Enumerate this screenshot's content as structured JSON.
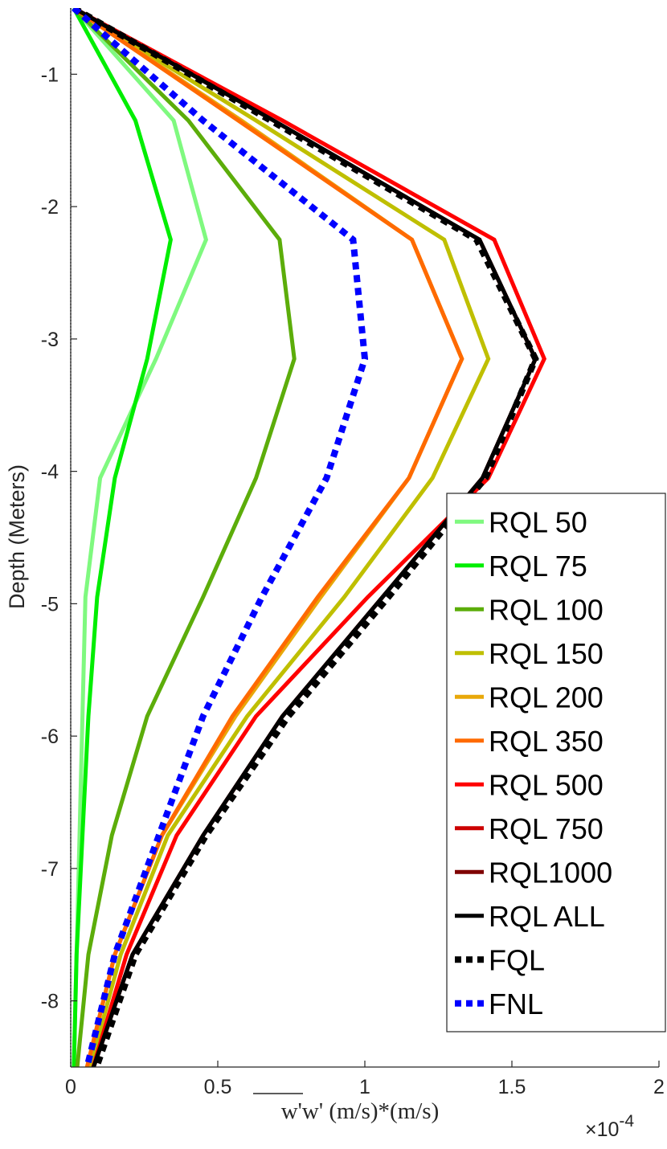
{
  "chart_data": {
    "type": "line",
    "title": "",
    "xlabel": "w'w' (m/s)*(m/s)",
    "ylabel": "Depth (Meters)",
    "x_multiplier": "×10^-4",
    "x_multiplier_base": "×10",
    "x_multiplier_exp": "-4",
    "xlim": [
      0,
      2
    ],
    "ylim": [
      -8.5,
      -0.5
    ],
    "xticks": [
      0,
      0.5,
      1,
      1.5,
      2
    ],
    "xtick_labels": [
      "0",
      "0.5",
      "1",
      "1.5",
      "2"
    ],
    "yticks": [
      -1,
      -2,
      -3,
      -4,
      -5,
      -6,
      -7,
      -8
    ],
    "ytick_labels": [
      "-1",
      "-2",
      "-3",
      "-4",
      "-5",
      "-6",
      "-7",
      "-8"
    ],
    "grid": false,
    "legend_position": "bottom-right",
    "depth": [
      -0.5,
      -1.35,
      -2.25,
      -3.15,
      -4.05,
      -4.95,
      -5.85,
      -6.75,
      -7.65,
      -8.55
    ],
    "series": [
      {
        "name": "RQL 50",
        "color": "#7ff97f",
        "style": "solid",
        "values": [
          0.01,
          0.35,
          0.46,
          0.29,
          0.1,
          0.05,
          0.04,
          0.03,
          0.02,
          0.01
        ]
      },
      {
        "name": "RQL 75",
        "color": "#00ee00",
        "style": "solid",
        "values": [
          0.01,
          0.22,
          0.34,
          0.26,
          0.15,
          0.09,
          0.06,
          0.04,
          0.02,
          0.01
        ]
      },
      {
        "name": "RQL 100",
        "color": "#5cad0a",
        "style": "solid",
        "values": [
          0.01,
          0.4,
          0.71,
          0.76,
          0.63,
          0.45,
          0.26,
          0.14,
          0.06,
          0.02
        ]
      },
      {
        "name": "RQL 150",
        "color": "#bfbf00",
        "style": "solid",
        "values": [
          0.01,
          0.63,
          1.27,
          1.42,
          1.23,
          0.93,
          0.6,
          0.33,
          0.17,
          0.06
        ]
      },
      {
        "name": "RQL 200",
        "color": "#e8a80a",
        "style": "solid",
        "values": [
          0.01,
          0.58,
          1.16,
          1.33,
          1.15,
          0.85,
          0.56,
          0.31,
          0.15,
          0.05
        ]
      },
      {
        "name": "RQL 350",
        "color": "#ff6a00",
        "style": "solid",
        "values": [
          0.01,
          0.57,
          1.16,
          1.33,
          1.15,
          0.84,
          0.55,
          0.31,
          0.15,
          0.05
        ]
      },
      {
        "name": "RQL 500",
        "color": "#ff0000",
        "style": "solid",
        "values": [
          0.01,
          0.72,
          1.44,
          1.61,
          1.42,
          1.01,
          0.63,
          0.36,
          0.19,
          0.07
        ]
      },
      {
        "name": "RQL 750",
        "color": "#cc0000",
        "style": "solid",
        "values": [
          0.01,
          0.69,
          1.39,
          1.58,
          1.4,
          1.06,
          0.72,
          0.45,
          0.21,
          0.07
        ]
      },
      {
        "name": "RQL1000",
        "color": "#7f0000",
        "style": "solid",
        "values": [
          0.01,
          0.69,
          1.39,
          1.58,
          1.4,
          1.06,
          0.72,
          0.45,
          0.21,
          0.07
        ]
      },
      {
        "name": "RQL ALL",
        "color": "#000000",
        "style": "solid",
        "values": [
          0.01,
          0.69,
          1.39,
          1.58,
          1.4,
          1.06,
          0.72,
          0.45,
          0.21,
          0.07
        ]
      },
      {
        "name": "FQL",
        "color": "#000000",
        "style": "dotted",
        "values": [
          0.01,
          0.68,
          1.38,
          1.58,
          1.41,
          1.08,
          0.74,
          0.46,
          0.22,
          0.08
        ]
      },
      {
        "name": "FNL",
        "color": "#0000ff",
        "style": "dotted",
        "values": [
          0.01,
          0.45,
          0.96,
          1.0,
          0.87,
          0.65,
          0.45,
          0.3,
          0.15,
          0.05
        ]
      }
    ]
  }
}
